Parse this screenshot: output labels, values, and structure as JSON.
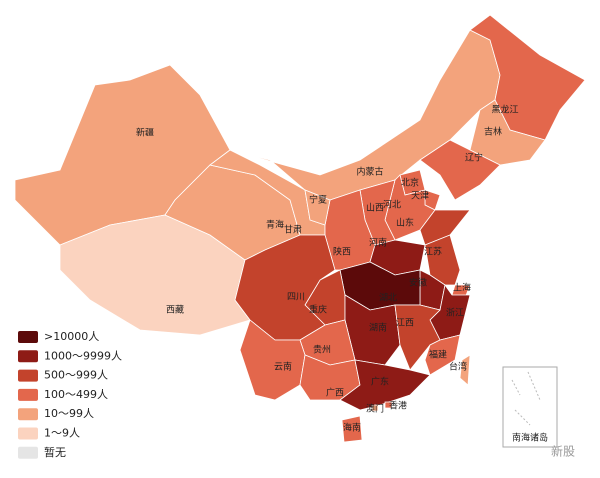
{
  "legend": [
    {
      "label": ">10000人",
      "color": "#5c0a0a"
    },
    {
      "label": "1000～9999人",
      "color": "#8e1b16"
    },
    {
      "label": "500～999人",
      "color": "#c3432c"
    },
    {
      "label": "100～499人",
      "color": "#e3674c"
    },
    {
      "label": "10～99人",
      "color": "#f3a37c"
    },
    {
      "label": "1～9人",
      "color": "#fbd3bf"
    },
    {
      "label": "暂无",
      "color": "#e5e5e5"
    }
  ],
  "regions": [
    {
      "label": "新疆",
      "level": 4
    },
    {
      "label": "西藏",
      "level": 5
    },
    {
      "label": "青海",
      "level": 4
    },
    {
      "label": "甘肃",
      "level": 4
    },
    {
      "label": "内蒙古",
      "level": 4
    },
    {
      "label": "黑龙江",
      "level": 3
    },
    {
      "label": "吉林",
      "level": 4
    },
    {
      "label": "辽宁",
      "level": 3
    },
    {
      "label": "北京",
      "level": 3
    },
    {
      "label": "天津",
      "level": 3
    },
    {
      "label": "河北",
      "level": 3
    },
    {
      "label": "山西",
      "level": 3
    },
    {
      "label": "山东",
      "level": 2
    },
    {
      "label": "陕西",
      "level": 3
    },
    {
      "label": "宁夏",
      "level": 4
    },
    {
      "label": "河南",
      "level": 1
    },
    {
      "label": "江苏",
      "level": 2
    },
    {
      "label": "安徽",
      "level": 1
    },
    {
      "label": "上海",
      "level": 3
    },
    {
      "label": "浙江",
      "level": 1
    },
    {
      "label": "湖北",
      "level": 0
    },
    {
      "label": "重庆",
      "level": 2
    },
    {
      "label": "四川",
      "level": 2
    },
    {
      "label": "湖南",
      "level": 1
    },
    {
      "label": "江西",
      "level": 2
    },
    {
      "label": "福建",
      "level": 3
    },
    {
      "label": "贵州",
      "level": 3
    },
    {
      "label": "云南",
      "level": 3
    },
    {
      "label": "广西",
      "level": 3
    },
    {
      "label": "广东",
      "level": 1
    },
    {
      "label": "海南",
      "level": 3
    },
    {
      "label": "台湾",
      "level": 4
    },
    {
      "label": "香港",
      "level": 3
    },
    {
      "label": "澳门",
      "level": 4
    }
  ],
  "inset_label": "南海诸岛",
  "watermark": "新股"
}
